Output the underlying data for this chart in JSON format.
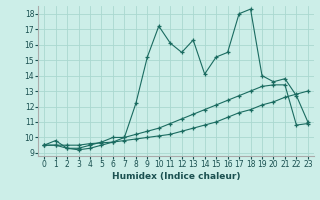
{
  "title": "",
  "xlabel": "Humidex (Indice chaleur)",
  "ylabel": "",
  "bg_color": "#cceee8",
  "grid_color": "#aad8d0",
  "line_color": "#1a6b60",
  "xlim": [
    -0.5,
    23.5
  ],
  "ylim": [
    8.8,
    18.5
  ],
  "xticks": [
    0,
    1,
    2,
    3,
    4,
    5,
    6,
    7,
    8,
    9,
    10,
    11,
    12,
    13,
    14,
    15,
    16,
    17,
    18,
    19,
    20,
    21,
    22,
    23
  ],
  "yticks": [
    9,
    10,
    11,
    12,
    13,
    14,
    15,
    16,
    17,
    18
  ],
  "line1_x": [
    0,
    1,
    2,
    3,
    4,
    5,
    6,
    7,
    8,
    9,
    10,
    11,
    12,
    13,
    14,
    15,
    16,
    17,
    18,
    19,
    20,
    21,
    22,
    23
  ],
  "line1_y": [
    9.5,
    9.8,
    9.3,
    9.3,
    9.5,
    9.7,
    10.0,
    10.0,
    12.2,
    15.2,
    17.2,
    16.1,
    15.5,
    16.3,
    14.1,
    15.2,
    15.5,
    18.0,
    18.3,
    14.0,
    13.6,
    13.8,
    12.7,
    11.0
  ],
  "line2_x": [
    0,
    1,
    2,
    3,
    4,
    5,
    6,
    7,
    8,
    9,
    10,
    11,
    12,
    13,
    14,
    15,
    16,
    17,
    18,
    19,
    20,
    21,
    22,
    23
  ],
  "line2_y": [
    9.5,
    9.5,
    9.5,
    9.5,
    9.6,
    9.65,
    9.7,
    9.8,
    9.9,
    10.0,
    10.1,
    10.2,
    10.4,
    10.6,
    10.8,
    11.0,
    11.3,
    11.6,
    11.8,
    12.1,
    12.3,
    12.6,
    12.8,
    13.0
  ],
  "line3_x": [
    0,
    1,
    2,
    3,
    4,
    5,
    6,
    7,
    8,
    9,
    10,
    11,
    12,
    13,
    14,
    15,
    16,
    17,
    18,
    19,
    20,
    21,
    22,
    23
  ],
  "line3_y": [
    9.5,
    9.5,
    9.3,
    9.2,
    9.3,
    9.5,
    9.7,
    10.0,
    10.2,
    10.4,
    10.6,
    10.9,
    11.2,
    11.5,
    11.8,
    12.1,
    12.4,
    12.7,
    13.0,
    13.3,
    13.4,
    13.4,
    10.8,
    10.9
  ]
}
